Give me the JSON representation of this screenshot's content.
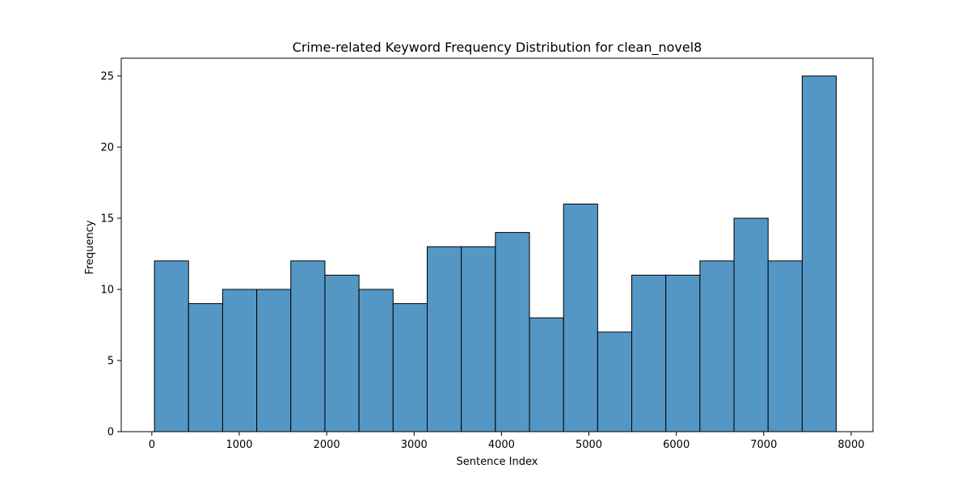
{
  "chart_data": {
    "type": "bar",
    "subtype": "histogram",
    "title": "Crime-related Keyword Frequency Distribution for clean_novel8",
    "xlabel": "Sentence Index",
    "ylabel": "Frequency",
    "xlim": [
      -350,
      8250
    ],
    "ylim": [
      0,
      26.25
    ],
    "xticks": [
      0,
      1000,
      2000,
      3000,
      4000,
      5000,
      6000,
      7000,
      8000
    ],
    "yticks": [
      0,
      5,
      10,
      15,
      20,
      25
    ],
    "grid": false,
    "bar_color": "#5497c5",
    "edge_color": "#000000",
    "bins": [
      {
        "x0": 30,
        "x1": 420,
        "value": 12
      },
      {
        "x0": 420,
        "x1": 810,
        "value": 9
      },
      {
        "x0": 810,
        "x1": 1200,
        "value": 10
      },
      {
        "x0": 1200,
        "x1": 1590,
        "value": 10
      },
      {
        "x0": 1590,
        "x1": 1980,
        "value": 12
      },
      {
        "x0": 1980,
        "x1": 2370,
        "value": 11
      },
      {
        "x0": 2370,
        "x1": 2760,
        "value": 10
      },
      {
        "x0": 2760,
        "x1": 3150,
        "value": 9
      },
      {
        "x0": 3150,
        "x1": 3540,
        "value": 13
      },
      {
        "x0": 3540,
        "x1": 3930,
        "value": 13
      },
      {
        "x0": 3930,
        "x1": 4320,
        "value": 14
      },
      {
        "x0": 4320,
        "x1": 4710,
        "value": 8
      },
      {
        "x0": 4710,
        "x1": 5100,
        "value": 16
      },
      {
        "x0": 5100,
        "x1": 5490,
        "value": 7
      },
      {
        "x0": 5490,
        "x1": 5880,
        "value": 11
      },
      {
        "x0": 5880,
        "x1": 6270,
        "value": 11
      },
      {
        "x0": 6270,
        "x1": 6660,
        "value": 12
      },
      {
        "x0": 6660,
        "x1": 7050,
        "value": 15
      },
      {
        "x0": 7050,
        "x1": 7440,
        "value": 12
      },
      {
        "x0": 7440,
        "x1": 7830,
        "value": 25
      }
    ]
  }
}
